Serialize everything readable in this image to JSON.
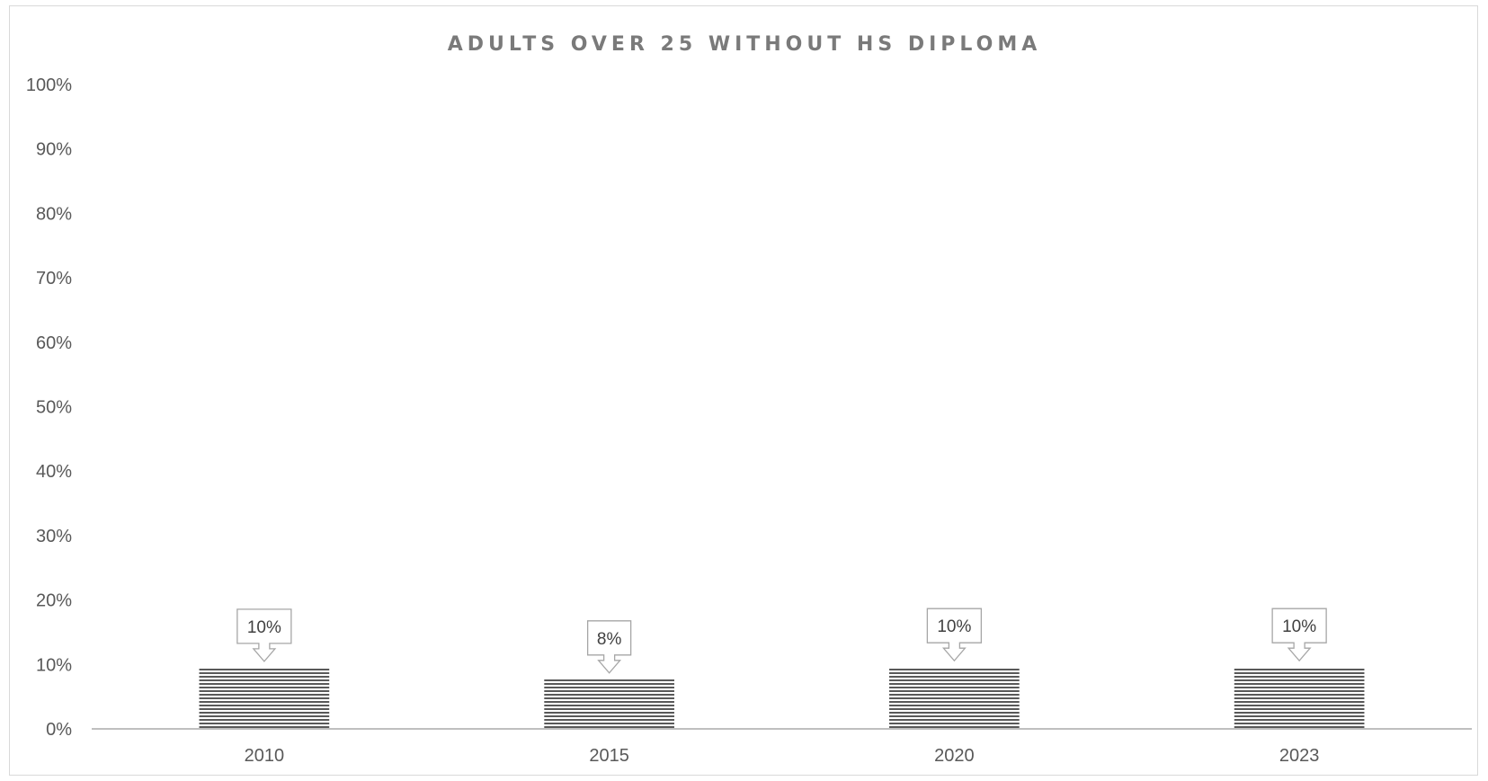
{
  "chart_data": {
    "type": "bar",
    "title": "ADULTS OVER 25 WITHOUT HS DIPLOMA",
    "categories": [
      "2010",
      "2015",
      "2020",
      "2023"
    ],
    "values": [
      0.095,
      0.077,
      0.096,
      0.096
    ],
    "data_labels": [
      "10%",
      "8%",
      "10%",
      "10%"
    ],
    "ylim": [
      0,
      1
    ],
    "yticks": [
      0,
      0.1,
      0.2,
      0.3,
      0.4,
      0.5,
      0.6,
      0.7,
      0.8,
      0.9,
      1.0
    ],
    "ytick_labels": [
      "0%",
      "10%",
      "20%",
      "30%",
      "40%",
      "50%",
      "60%",
      "70%",
      "80%",
      "90%",
      "100%"
    ],
    "xlabel": "",
    "ylabel": "",
    "grid": false,
    "legend": "none",
    "colors": {
      "bar_stripe": "#595959",
      "axis": "#bfbfbf",
      "text": "#595959",
      "title": "#7a7a7a"
    }
  }
}
